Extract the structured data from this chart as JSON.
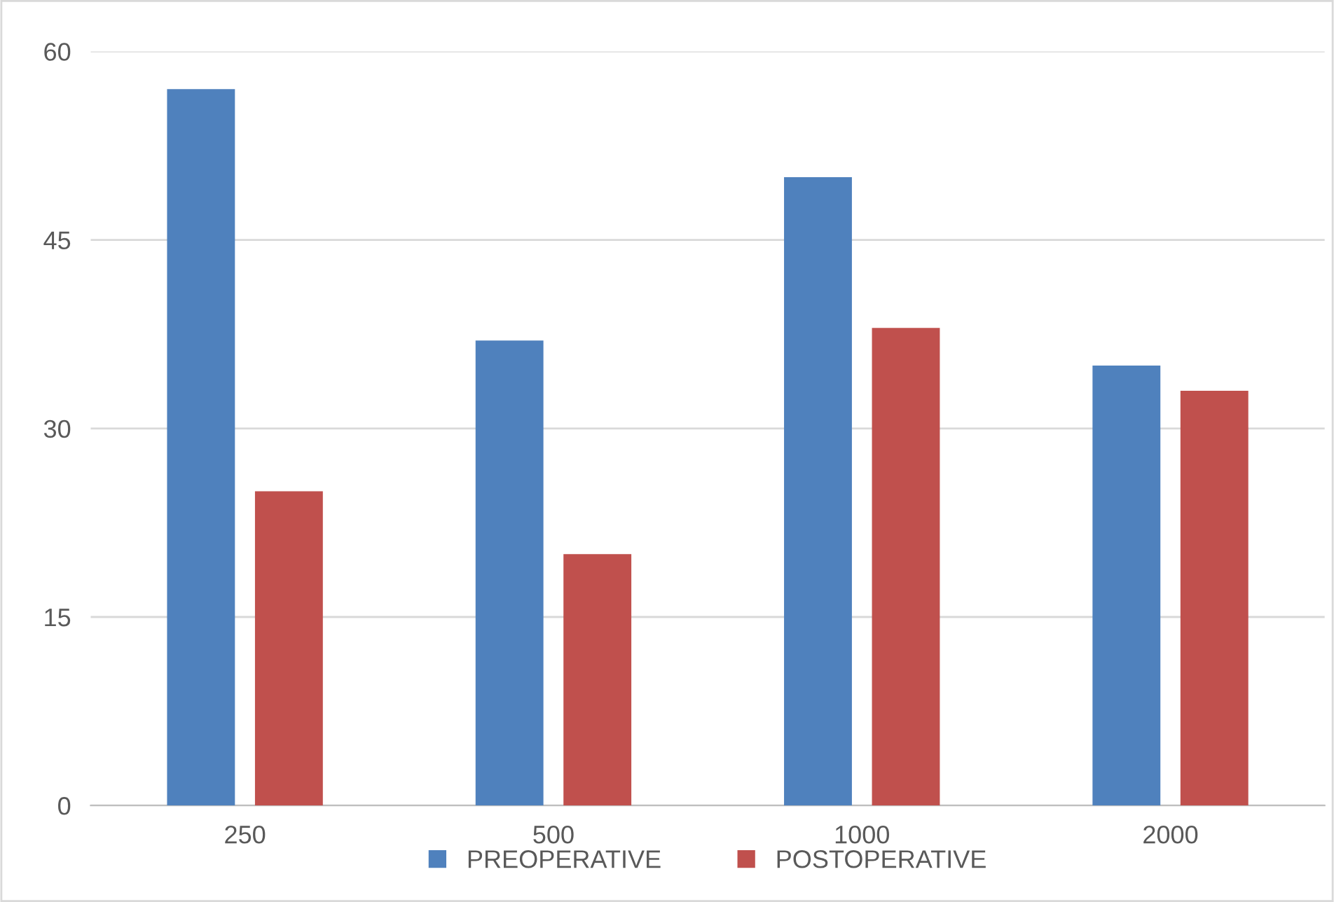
{
  "chart_data": {
    "type": "bar",
    "categories": [
      "250",
      "500",
      "1000",
      "2000"
    ],
    "series": [
      {
        "name": "PREOPERATIVE",
        "color": "#4f81bd",
        "values": [
          57,
          37,
          50,
          35
        ]
      },
      {
        "name": "POSTOPERATIVE",
        "color": "#c0504d",
        "values": [
          25,
          20,
          38,
          33
        ]
      }
    ],
    "ylim": [
      0,
      60
    ],
    "yticks": [
      0,
      15,
      30,
      45,
      60
    ],
    "grid": "y",
    "legend": "bottom"
  }
}
